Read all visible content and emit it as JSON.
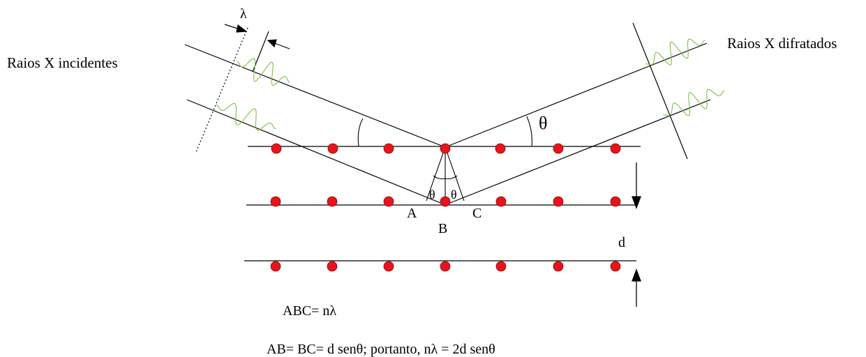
{
  "labels": {
    "incident": "Raios X incidentes",
    "diffracted": "Raios X difratados",
    "lambda": "λ",
    "theta_large": "θ",
    "theta_left": "θ",
    "theta_right": "θ",
    "point_a": "A",
    "point_b": "B",
    "point_c": "C",
    "spacing_d": "d"
  },
  "equations": {
    "path_difference": "ABC= nλ",
    "bragg_law": "AB= BC= d senθ; portanto, nλ = 2d senθ"
  },
  "colors": {
    "atom": "#e8141b",
    "atom_stroke": "#8a0a0a",
    "wave": "#7bc043",
    "line": "#000000"
  }
}
